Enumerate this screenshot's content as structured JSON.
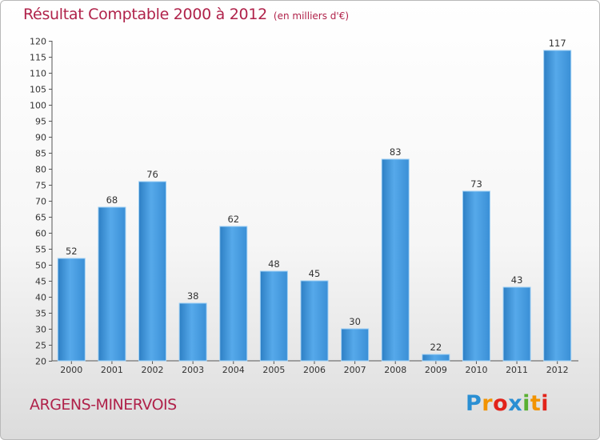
{
  "chart_data": {
    "type": "bar",
    "title": "Résultat Comptable 2000 à 2012",
    "subtitle": "(en milliers d'€)",
    "categories": [
      "2000",
      "2001",
      "2002",
      "2003",
      "2004",
      "2005",
      "2006",
      "2007",
      "2008",
      "2009",
      "2010",
      "2011",
      "2012"
    ],
    "values": [
      52,
      68,
      76,
      38,
      62,
      48,
      45,
      30,
      83,
      22,
      73,
      43,
      117
    ],
    "ylim": [
      20,
      120
    ],
    "ytick_step": 5,
    "xlabel": "",
    "ylabel": "",
    "grid": false,
    "bar_color": "#3a8fd6",
    "bar_color_light": "#5fb0ee"
  },
  "footer": {
    "city": "ARGENS-MINERVOIS",
    "logo": {
      "letters": [
        "P",
        "r",
        "o",
        "x",
        "i",
        "t",
        "i"
      ],
      "colors": [
        "#2a8fd3",
        "#f29300",
        "#e2231a",
        "#2a8fd3",
        "#59b031",
        "#f29300",
        "#e2231a"
      ]
    }
  },
  "colors": {
    "title": "#b0224a",
    "axis": "#555555"
  }
}
